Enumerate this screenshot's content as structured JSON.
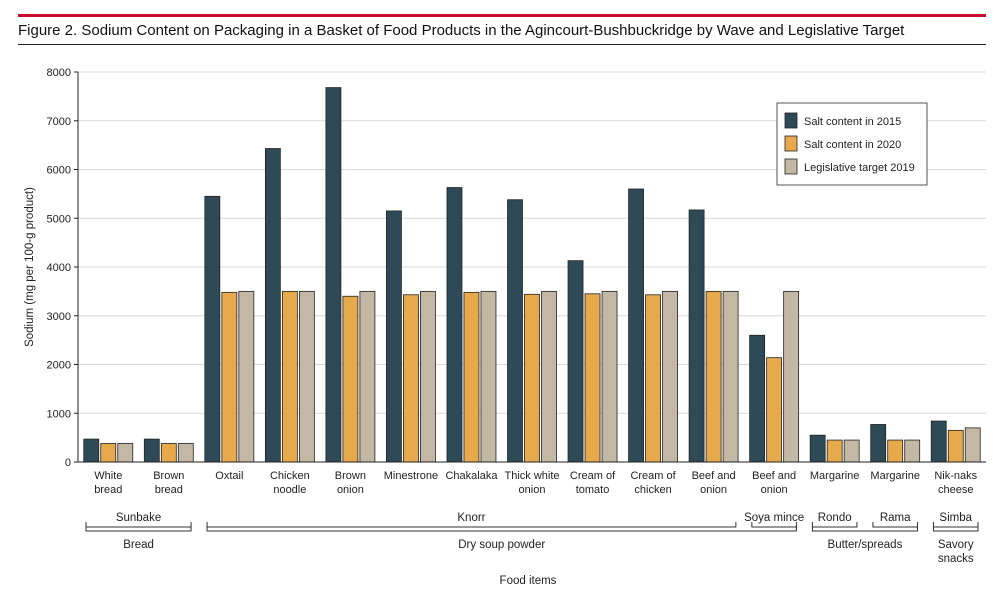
{
  "header": {
    "title": "Figure 2. Sodium Content on Packaging in a Basket of Food Products in the Agincourt-Bushbuckridge by Wave and Legislative Target"
  },
  "colors": {
    "accent_rule": "#c8102e",
    "series_2015": "#2e4a57",
    "series_2020": "#e6a94c",
    "series_target": "#c2b8a3",
    "grid": "#d9d9d9",
    "bracket": "#333333"
  },
  "chart_data": {
    "type": "bar",
    "title": "",
    "xlabel": "Food items",
    "ylabel": "Sodium (mg per 100-g product)",
    "ylim": [
      0,
      8000
    ],
    "yticks": [
      "0",
      "1000",
      "2000",
      "3000",
      "4000",
      "5000",
      "6000",
      "7000",
      "8000"
    ],
    "grid": true,
    "legend_position": "top-right",
    "categories": [
      [
        "White",
        "bread"
      ],
      [
        "Brown",
        "bread"
      ],
      [
        "Oxtail"
      ],
      [
        "Chicken",
        "noodle"
      ],
      [
        "Brown",
        "onion"
      ],
      [
        "Minestrone"
      ],
      [
        "Chakalaka"
      ],
      [
        "Thick white",
        "onion"
      ],
      [
        "Cream of",
        "tomato"
      ],
      [
        "Cream of",
        "chicken"
      ],
      [
        "Beef and",
        "onion"
      ],
      [
        "Beef and",
        "onion"
      ],
      [
        "Margarine"
      ],
      [
        "Margarine"
      ],
      [
        "Nik-naks",
        "cheese"
      ]
    ],
    "series": [
      {
        "name": "Salt content in 2015",
        "color": "#2e4a57",
        "values": [
          470,
          470,
          5450,
          6430,
          7680,
          5150,
          5630,
          5380,
          4130,
          5600,
          5170,
          2600,
          550,
          770,
          840
        ]
      },
      {
        "name": "Salt content in 2020",
        "color": "#e6a94c",
        "values": [
          380,
          380,
          3480,
          3500,
          3400,
          3430,
          3480,
          3440,
          3450,
          3430,
          3500,
          2140,
          450,
          450,
          650
        ]
      },
      {
        "name": "Legislative target 2019",
        "color": "#c2b8a3",
        "values": [
          380,
          380,
          3500,
          3500,
          3500,
          3500,
          3500,
          3500,
          3500,
          3500,
          3500,
          3500,
          450,
          450,
          700
        ]
      }
    ],
    "brands": [
      {
        "label": "Sunbake",
        "from": 0,
        "to": 1
      },
      {
        "label": "Knorr",
        "from": 2,
        "to": 10
      },
      {
        "label": "Soya mince",
        "from": 11,
        "to": 11
      },
      {
        "label": "Rondo",
        "from": 12,
        "to": 12
      },
      {
        "label": "Rama",
        "from": 13,
        "to": 13
      },
      {
        "label": "Simba",
        "from": 14,
        "to": 14
      }
    ],
    "groups": [
      {
        "label": [
          "Bread"
        ],
        "from": 0,
        "to": 1
      },
      {
        "label": [
          "Dry soup powder"
        ],
        "from": 2,
        "to": 11
      },
      {
        "label": [
          "Butter/spreads"
        ],
        "from": 12,
        "to": 13
      },
      {
        "label": [
          "Savory",
          "snacks"
        ],
        "from": 14,
        "to": 14
      }
    ]
  }
}
